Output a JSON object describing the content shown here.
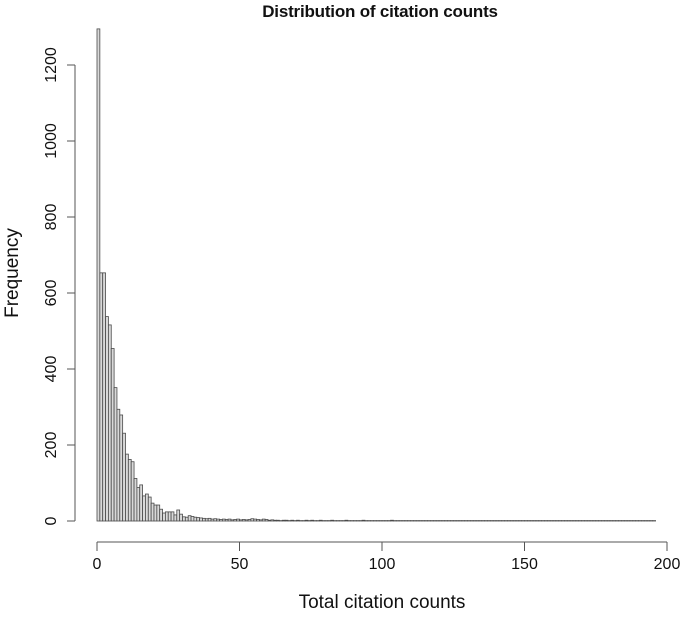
{
  "chart_data": {
    "type": "bar",
    "title": "Distribution of citation counts",
    "xlabel": "Total citation counts",
    "ylabel": "Frequency",
    "xlim": [
      0,
      200
    ],
    "ylim": [
      0,
      1300
    ],
    "xticks": [
      0,
      50,
      100,
      150,
      200
    ],
    "yticks": [
      0,
      200,
      400,
      600,
      800,
      1000,
      1200
    ],
    "grid": false,
    "legend": null,
    "bin_width": 1,
    "bins_start": [
      0,
      1,
      2,
      3,
      4,
      5,
      6,
      7,
      8,
      9,
      10,
      11,
      12,
      13,
      14,
      15,
      16,
      17,
      18,
      19,
      20,
      21,
      22,
      23,
      24,
      25,
      26,
      27,
      28,
      29,
      30,
      31,
      32,
      33,
      34,
      35,
      36,
      37,
      38,
      39,
      40,
      41,
      42,
      43,
      44,
      45,
      46,
      47,
      48,
      49,
      50,
      51,
      52,
      53,
      54,
      55,
      56,
      57,
      58,
      59,
      60,
      61,
      62,
      63,
      64,
      65,
      66,
      67,
      68,
      69,
      70,
      71,
      72,
      73,
      74,
      75,
      76,
      77,
      78,
      79,
      80,
      81,
      82,
      83,
      84,
      85,
      86,
      87,
      88,
      89,
      90,
      91,
      92,
      93,
      94,
      95,
      96,
      97,
      98,
      99,
      100,
      101,
      102,
      103,
      104,
      105,
      106,
      107,
      108,
      109,
      110,
      111,
      112,
      113,
      114,
      115,
      116,
      117,
      118,
      119,
      120,
      121,
      122,
      123,
      124,
      125,
      126,
      127,
      128,
      129,
      130,
      131,
      132,
      133,
      134,
      135,
      136,
      137,
      138,
      139,
      140,
      141,
      142,
      143,
      144,
      145,
      146,
      147,
      148,
      149,
      150,
      151,
      152,
      153,
      154,
      155,
      156,
      157,
      158,
      159,
      160,
      161,
      162,
      163,
      164,
      165,
      166,
      167,
      168,
      169,
      170,
      171,
      172,
      173,
      174,
      175,
      176,
      177,
      178,
      179,
      180,
      181,
      182,
      183,
      184,
      185,
      186,
      187,
      188,
      189,
      190,
      191,
      192,
      193,
      194,
      195
    ],
    "values": [
      1295,
      653,
      653,
      538,
      516,
      454,
      351,
      294,
      279,
      231,
      176,
      162,
      156,
      112,
      88,
      95,
      66,
      71,
      63,
      47,
      42,
      42,
      31,
      21,
      24,
      24,
      24,
      16,
      29,
      18,
      11,
      10,
      14,
      12,
      10,
      9,
      8,
      7,
      6,
      7,
      5,
      6,
      5,
      4,
      5,
      4,
      5,
      3,
      4,
      5,
      3,
      4,
      3,
      4,
      6,
      5,
      4,
      3,
      5,
      4,
      2,
      3,
      2,
      2,
      1,
      2,
      2,
      1,
      2,
      1,
      2,
      1,
      1,
      2,
      1,
      2,
      1,
      1,
      2,
      1,
      1,
      1,
      2,
      1,
      1,
      1,
      1,
      2,
      1,
      1,
      1,
      1,
      1,
      2,
      1,
      1,
      1,
      1,
      1,
      1,
      1,
      1,
      1,
      2,
      1,
      1,
      1,
      1,
      1,
      1,
      1,
      1,
      1,
      1,
      1,
      1,
      1,
      1,
      1,
      1,
      1,
      1,
      1,
      1,
      1,
      1,
      1,
      1,
      1,
      1,
      1,
      1,
      1,
      1,
      1,
      1,
      1,
      1,
      1,
      1,
      1,
      1,
      1,
      1,
      1,
      1,
      1,
      1,
      1,
      1,
      1,
      1,
      1,
      1,
      1,
      1,
      1,
      1,
      1,
      1,
      1,
      1,
      1,
      1,
      1,
      1,
      1,
      1,
      1,
      1,
      1,
      1,
      1,
      1,
      1,
      1,
      1,
      1,
      1,
      1,
      1,
      1,
      1,
      1,
      1,
      1,
      1,
      1,
      1,
      1,
      1,
      1,
      1,
      1,
      1,
      1
    ],
    "colors": {
      "bar_fill": "#d9d9d9",
      "bar_border": "#4a4a4a",
      "axis": "#555555"
    }
  }
}
